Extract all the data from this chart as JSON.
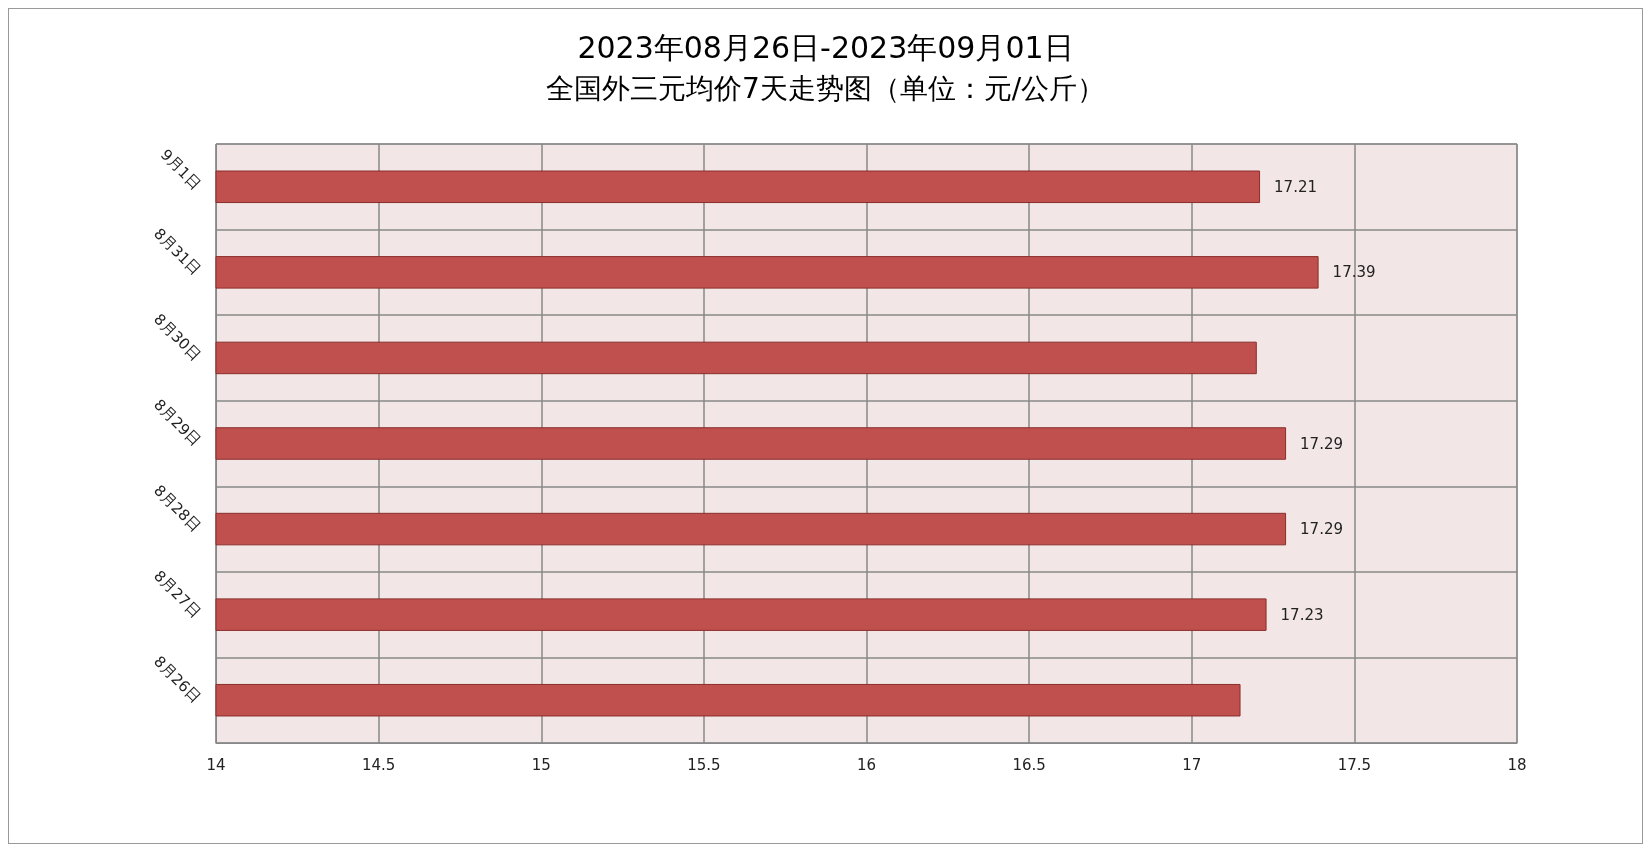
{
  "chart_data": {
    "type": "bar",
    "orientation": "horizontal",
    "title": "2023年08月26日-2023年09月01日",
    "subtitle": "全国外三元均价7天走势图（单位：元/公斤）",
    "categories": [
      "9月1日",
      "8月31日",
      "8月30日",
      "8月29日",
      "8月28日",
      "8月27日",
      "8月26日"
    ],
    "values": [
      17.21,
      17.39,
      17.2,
      17.29,
      17.29,
      17.23,
      17.15
    ],
    "value_labels": [
      "17.21",
      "17.39",
      null,
      "17.29",
      "17.29",
      "17.23",
      null
    ],
    "color": "#c0504d",
    "xlim": [
      14,
      18
    ],
    "xticks": [
      14,
      14.5,
      15,
      15.5,
      16,
      16.5,
      17,
      17.5,
      18
    ],
    "grid": true
  }
}
